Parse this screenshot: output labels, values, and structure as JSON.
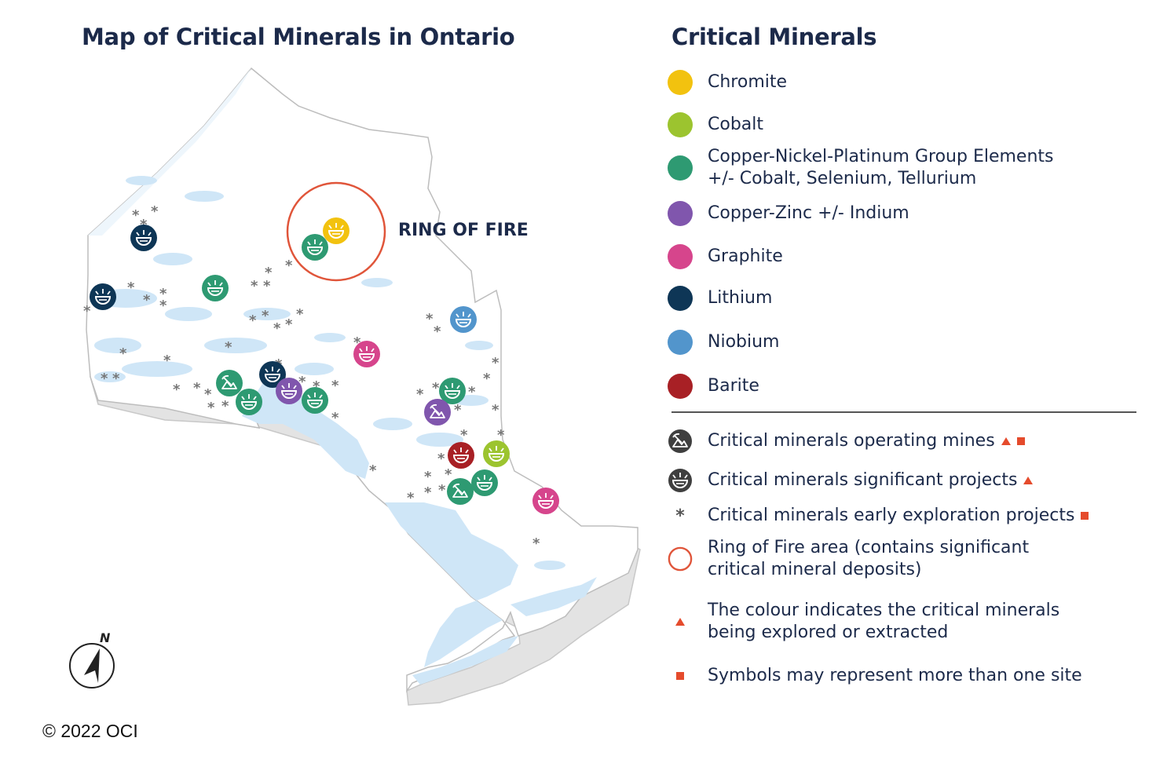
{
  "title": "Map of Critical Minerals in Ontario",
  "legend_title": "Critical Minerals",
  "ring_label": "RING OF FIRE",
  "copyright": "© 2022 OCI",
  "compass_letter": "N",
  "minerals": [
    {
      "key": "chromite",
      "label": "Chromite",
      "color": "#f2c20f"
    },
    {
      "key": "cobalt",
      "label": "Cobalt",
      "color": "#9cc42f"
    },
    {
      "key": "cu-ni-pge",
      "label": "Copper-Nickel-Platinum Group Elements\n+/- Cobalt, Selenium, Tellurium",
      "color": "#2e9a72"
    },
    {
      "key": "cu-zn",
      "label": "Copper-Zinc +/- Indium",
      "color": "#8056ad"
    },
    {
      "key": "graphite",
      "label": "Graphite",
      "color": "#d6458c"
    },
    {
      "key": "lithium",
      "label": "Lithium",
      "color": "#0e3656"
    },
    {
      "key": "niobium",
      "label": "Niobium",
      "color": "#5295cc"
    },
    {
      "key": "barite",
      "label": "Barite",
      "color": "#a82025"
    }
  ],
  "symbols": {
    "operating_mines": "Critical minerals operating mines",
    "significant_projects": "Critical minerals significant projects",
    "early_exploration": "Critical minerals early exploration projects",
    "ring_of_fire_area": "Ring of Fire area (contains significant\ncritical mineral deposits)",
    "note_colour": "The colour indicates the critical minerals\nbeing explored or extracted",
    "note_multiple": "Symbols may represent more than one site"
  },
  "colors": {
    "water": "#cfe6f7",
    "land": "#ffffff",
    "outline": "#bdbdbd",
    "ring": "#e0553a",
    "marker_accent": "#e54b2c",
    "symbol_dark": "#3f3f3f",
    "asterisk": "#777777"
  }
}
